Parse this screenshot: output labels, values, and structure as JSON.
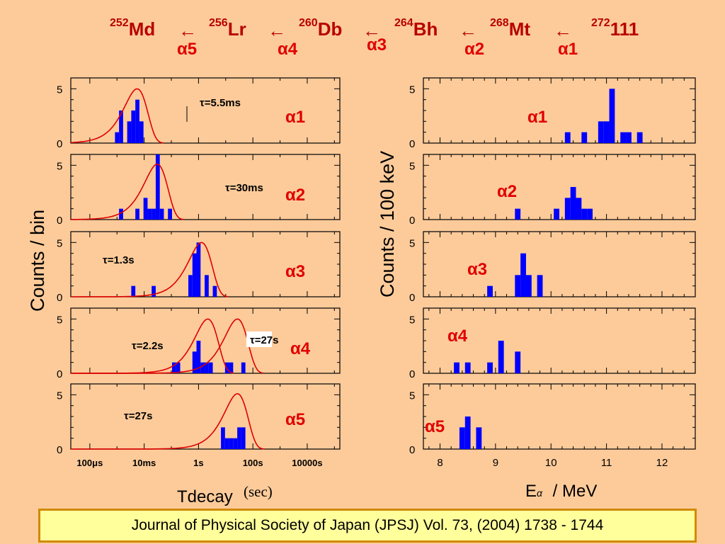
{
  "title": {
    "chain": [
      {
        "mass": "252",
        "symbol": "Md"
      },
      {
        "mass": "256",
        "symbol": "Lr"
      },
      {
        "mass": "260",
        "symbol": "Db"
      },
      {
        "mass": "264",
        "symbol": "Bh"
      },
      {
        "mass": "268",
        "symbol": "Mt"
      },
      {
        "mass": "272",
        "symbol": "111"
      }
    ],
    "arrow": "←",
    "alphas": [
      "α5",
      "α4",
      "α3",
      "α2",
      "α1"
    ]
  },
  "axes": {
    "left_ylabel": "Counts / bin",
    "right_ylabel": "Counts / 100 keV",
    "left_xlabel": "Tdecay",
    "left_xunit": "(sec)",
    "right_xlabel_main": "E",
    "right_xlabel_sub": "α",
    "right_xlabel_unit": "/ MeV",
    "ytick_labels": [
      "0",
      "5"
    ]
  },
  "footer": "Journal of Physical Society of Japan (JPSJ) Vol. 73, (2004) 1738 - 1744",
  "colors": {
    "background": "#fdcb9a",
    "bars": "#0000ff",
    "fit": "#e00000",
    "label": "#e00000"
  },
  "chart_data": [
    {
      "type": "bar",
      "name": "decay-time histograms",
      "x_scale": "log10 seconds",
      "xlim": [
        -4.7,
        5.2
      ],
      "ylim": [
        0,
        6
      ],
      "x_ticks": [
        -4,
        -2,
        0,
        2,
        4
      ],
      "x_tick_labels": [
        "100μs",
        "10ms",
        "1s",
        "100s",
        "10000s"
      ],
      "panels": [
        {
          "label": "α1",
          "tau_text": "τ=5.5ms",
          "bins": [
            [
              -3.0,
              1
            ],
            [
              -2.85,
              3
            ],
            [
              -2.55,
              2
            ],
            [
              -2.4,
              3
            ],
            [
              -2.25,
              4
            ],
            [
              -2.1,
              2
            ]
          ],
          "fits": [
            {
              "center": -2.26,
              "height": 5.0
            }
          ]
        },
        {
          "label": "α2",
          "tau_text": "τ=30ms",
          "bins": [
            [
              -2.85,
              1
            ],
            [
              -2.25,
              1
            ],
            [
              -1.95,
              2
            ],
            [
              -1.8,
              1
            ],
            [
              -1.65,
              1
            ],
            [
              -1.5,
              6
            ],
            [
              -1.35,
              1
            ],
            [
              -1.05,
              1
            ]
          ],
          "fits": [
            {
              "center": -1.52,
              "height": 5.1
            }
          ]
        },
        {
          "label": "α3",
          "tau_text": "τ=1.3s",
          "bins": [
            [
              -2.4,
              1
            ],
            [
              -1.65,
              1
            ],
            [
              -0.3,
              2
            ],
            [
              -0.15,
              4
            ],
            [
              0.0,
              5
            ],
            [
              0.3,
              2
            ],
            [
              0.6,
              1
            ]
          ],
          "fits": [
            {
              "center": 0.11,
              "height": 5.0
            }
          ]
        },
        {
          "label": "α4",
          "tau_text": "τ=2.2s",
          "tau_text_2": "τ=27s",
          "bins": [
            [
              -0.9,
              1
            ],
            [
              -0.75,
              1
            ],
            [
              -0.15,
              2
            ],
            [
              0.0,
              3
            ],
            [
              0.15,
              1
            ],
            [
              0.3,
              1
            ],
            [
              0.45,
              1
            ],
            [
              1.05,
              1
            ],
            [
              1.2,
              1
            ],
            [
              1.65,
              1
            ]
          ],
          "fits": [
            {
              "center": 0.34,
              "height": 5.0
            },
            {
              "center": 1.43,
              "height": 5.0
            }
          ]
        },
        {
          "label": "α5",
          "tau_text": "τ=27s",
          "bins": [
            [
              0.9,
              2
            ],
            [
              1.05,
              1
            ],
            [
              1.2,
              1
            ],
            [
              1.35,
              1
            ],
            [
              1.5,
              2
            ],
            [
              1.65,
              2
            ]
          ],
          "fits": [
            {
              "center": 1.43,
              "height": 5.1
            }
          ]
        }
      ]
    },
    {
      "type": "bar",
      "name": "alpha energy histograms",
      "x_unit": "MeV",
      "xlim": [
        7.7,
        12.6
      ],
      "ylim": [
        0,
        6
      ],
      "x_ticks": [
        8,
        9,
        10,
        11,
        12
      ],
      "x_tick_labels": [
        "8",
        "9",
        "10",
        "11",
        "12"
      ],
      "panels": [
        {
          "label": "α1",
          "bins": [
            [
              10.3,
              1
            ],
            [
              10.6,
              1
            ],
            [
              10.9,
              2
            ],
            [
              11.0,
              2
            ],
            [
              11.1,
              5
            ],
            [
              11.3,
              1
            ],
            [
              11.4,
              1
            ],
            [
              11.6,
              1
            ]
          ]
        },
        {
          "label": "α2",
          "bins": [
            [
              9.4,
              1
            ],
            [
              10.1,
              1
            ],
            [
              10.3,
              2
            ],
            [
              10.4,
              3
            ],
            [
              10.5,
              2
            ],
            [
              10.6,
              1
            ],
            [
              10.7,
              1
            ]
          ]
        },
        {
          "label": "α3",
          "bins": [
            [
              8.9,
              1
            ],
            [
              9.4,
              2
            ],
            [
              9.5,
              4
            ],
            [
              9.6,
              2
            ],
            [
              9.8,
              2
            ]
          ]
        },
        {
          "label": "α4",
          "bins": [
            [
              8.3,
              1
            ],
            [
              8.5,
              1
            ],
            [
              8.9,
              1
            ],
            [
              9.1,
              3
            ],
            [
              9.4,
              2
            ]
          ]
        },
        {
          "label": "α5",
          "bins": [
            [
              8.4,
              2
            ],
            [
              8.5,
              3
            ],
            [
              8.7,
              2
            ]
          ]
        }
      ]
    }
  ]
}
